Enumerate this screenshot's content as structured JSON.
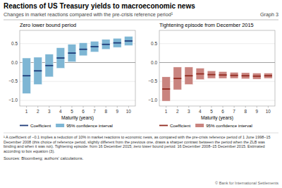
{
  "title": "Reactions of US Treasury yields to macroeconomic news",
  "subtitle": "Changes in market reactions compared with the pre-crisis reference period¹",
  "graph_label": "Graph 3",
  "footnote": "¹ A coefficient of −0.1 implies a reduction of 10% in market reactions to economic news, as compared with the pre-crisis reference period of 1 June 1998–15 December 2008 (this choice of reference period, slightly different from the previous one, draws a sharper contrast between the period when the ZLB was binding and when it was not). Tightening episode: from 16 December 2015; zero lower bound period: 16 December 2008–15 December 2015. Estimated according to box equation (3).",
  "source": "Sources: Bloomberg; authors' calculations.",
  "copyright": "© Bank for International Settlements",
  "chart_data": [
    {
      "type": "bar",
      "title": "Zero lower bound period",
      "x_label": "Maturity (years)",
      "x": [
        1,
        2,
        3,
        4,
        5,
        6,
        7,
        8,
        9,
        10
      ],
      "xlim": [
        0.4,
        10.6
      ],
      "xticks": [
        1,
        2,
        3,
        4,
        5,
        6,
        7,
        8,
        9,
        10
      ],
      "ylim": [
        -1.15,
        0.85
      ],
      "yticks": [
        {
          "value": -1.0,
          "label": "−1.0"
        },
        {
          "value": -0.5,
          "label": "−0.5"
        },
        {
          "value": 0,
          "label": "0.0"
        },
        0.5
      ],
      "grid": true,
      "legend": "bottom",
      "series": [
        {
          "name": "Coefficient",
          "type": "scatter",
          "marker": "dash",
          "color": "#1f3d7a",
          "values": [
            -0.35,
            -0.22,
            -0.08,
            0.12,
            0.25,
            0.35,
            0.42,
            0.48,
            0.52,
            0.57
          ]
        },
        {
          "name": "95% confidence interval",
          "type": "range",
          "color": "#7eb6d4",
          "low": [
            -0.82,
            -0.58,
            -0.38,
            -0.15,
            0.02,
            0.18,
            0.28,
            0.35,
            0.4,
            0.45
          ],
          "high": [
            0.12,
            0.14,
            0.22,
            0.39,
            0.48,
            0.52,
            0.56,
            0.61,
            0.64,
            0.69
          ]
        }
      ]
    },
    {
      "type": "bar",
      "title": "Tightening episode from December 2015",
      "x_label": "Maturity (years)",
      "x": [
        1,
        2,
        3,
        4,
        5,
        6,
        7,
        8,
        9,
        10
      ],
      "xlim": [
        0.4,
        10.6
      ],
      "xticks": [
        1,
        2,
        3,
        4,
        5,
        6,
        7,
        8,
        9,
        10
      ],
      "ylim": [
        -1.15,
        0.85
      ],
      "yticks": [
        {
          "value": -1.0,
          "label": "−1.0"
        },
        {
          "value": -0.5,
          "label": "−0.5"
        },
        {
          "value": 0,
          "label": "0.0"
        },
        0.5
      ],
      "grid": true,
      "legend": "bottom",
      "series": [
        {
          "name": "Coefficient",
          "type": "scatter",
          "marker": "dash",
          "color": "#922b21",
          "values": [
            -0.7,
            -0.42,
            -0.35,
            -0.3,
            -0.32,
            -0.33,
            -0.34,
            -0.35,
            -0.36,
            -0.35
          ]
        },
        {
          "name": "95% confidence interval",
          "type": "range",
          "color": "#c9847f",
          "low": [
            -1.02,
            -0.72,
            -0.58,
            -0.45,
            -0.42,
            -0.42,
            -0.42,
            -0.43,
            -0.44,
            -0.42
          ],
          "high": [
            -0.38,
            -0.12,
            -0.12,
            -0.15,
            -0.22,
            -0.24,
            -0.26,
            -0.27,
            -0.28,
            -0.28
          ]
        }
      ]
    }
  ]
}
